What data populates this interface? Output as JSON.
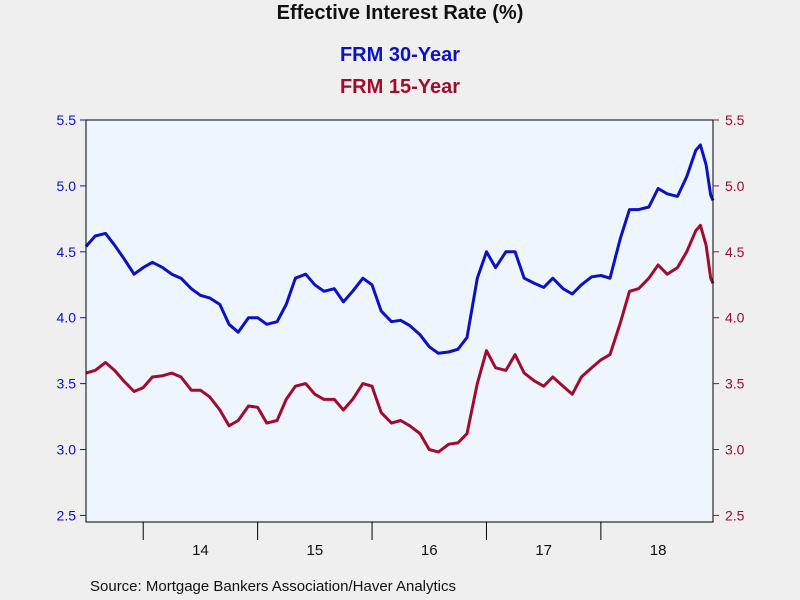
{
  "colors": {
    "series1": "#0b12c4",
    "series2": "#a10b2e",
    "plot_bg": "#eef5fd",
    "frame": "#000000"
  },
  "chart_data": {
    "type": "line",
    "title": "Effective Interest Rate (%)",
    "source": "Source:  Mortgage Bankers Association/Haver Analytics",
    "x_range": [
      2013.5,
      2018.98
    ],
    "x_ticks": [
      {
        "label": "14",
        "value": 2014.5
      },
      {
        "label": "15",
        "value": 2015.5
      },
      {
        "label": "16",
        "value": 2016.5
      },
      {
        "label": "17",
        "value": 2017.5
      },
      {
        "label": "18",
        "value": 2018.5
      }
    ],
    "y_left": {
      "range": [
        2.45,
        5.5
      ],
      "ticks": [
        "2.5",
        "3.0",
        "3.5",
        "4.0",
        "4.5",
        "5.0",
        "5.5"
      ]
    },
    "y_right": {
      "range": [
        2.45,
        5.5
      ],
      "ticks": [
        "2.5",
        "3.0",
        "3.5",
        "4.0",
        "4.5",
        "5.0",
        "5.5"
      ]
    },
    "grid": false,
    "legend": "top-center",
    "series": [
      {
        "name": "FRM 30-Year",
        "axis": "left",
        "points": [
          [
            2013.5,
            4.54
          ],
          [
            2013.58,
            4.62
          ],
          [
            2013.67,
            4.64
          ],
          [
            2013.75,
            4.55
          ],
          [
            2013.83,
            4.45
          ],
          [
            2013.92,
            4.33
          ],
          [
            2014.0,
            4.38
          ],
          [
            2014.08,
            4.42
          ],
          [
            2014.17,
            4.38
          ],
          [
            2014.25,
            4.33
          ],
          [
            2014.33,
            4.3
          ],
          [
            2014.42,
            4.22
          ],
          [
            2014.5,
            4.17
          ],
          [
            2014.58,
            4.15
          ],
          [
            2014.67,
            4.1
          ],
          [
            2014.75,
            3.95
          ],
          [
            2014.83,
            3.89
          ],
          [
            2014.92,
            4.0
          ],
          [
            2015.0,
            4.0
          ],
          [
            2015.08,
            3.95
          ],
          [
            2015.17,
            3.97
          ],
          [
            2015.25,
            4.1
          ],
          [
            2015.33,
            4.3
          ],
          [
            2015.42,
            4.33
          ],
          [
            2015.5,
            4.25
          ],
          [
            2015.58,
            4.2
          ],
          [
            2015.67,
            4.22
          ],
          [
            2015.75,
            4.12
          ],
          [
            2015.83,
            4.2
          ],
          [
            2015.92,
            4.3
          ],
          [
            2016.0,
            4.25
          ],
          [
            2016.08,
            4.05
          ],
          [
            2016.17,
            3.97
          ],
          [
            2016.25,
            3.98
          ],
          [
            2016.33,
            3.94
          ],
          [
            2016.42,
            3.87
          ],
          [
            2016.5,
            3.78
          ],
          [
            2016.58,
            3.73
          ],
          [
            2016.67,
            3.74
          ],
          [
            2016.75,
            3.76
          ],
          [
            2016.83,
            3.85
          ],
          [
            2016.92,
            4.3
          ],
          [
            2017.0,
            4.5
          ],
          [
            2017.08,
            4.38
          ],
          [
            2017.17,
            4.5
          ],
          [
            2017.25,
            4.5
          ],
          [
            2017.33,
            4.3
          ],
          [
            2017.42,
            4.26
          ],
          [
            2017.5,
            4.23
          ],
          [
            2017.58,
            4.3
          ],
          [
            2017.67,
            4.22
          ],
          [
            2017.75,
            4.18
          ],
          [
            2017.83,
            4.25
          ],
          [
            2017.92,
            4.31
          ],
          [
            2018.0,
            4.32
          ],
          [
            2018.08,
            4.3
          ],
          [
            2018.17,
            4.6
          ],
          [
            2018.25,
            4.82
          ],
          [
            2018.33,
            4.82
          ],
          [
            2018.42,
            4.84
          ],
          [
            2018.5,
            4.98
          ],
          [
            2018.58,
            4.94
          ],
          [
            2018.67,
            4.92
          ],
          [
            2018.75,
            5.07
          ],
          [
            2018.83,
            5.27
          ],
          [
            2018.87,
            5.31
          ],
          [
            2018.92,
            5.16
          ],
          [
            2018.96,
            4.93
          ],
          [
            2018.98,
            4.89
          ]
        ]
      },
      {
        "name": "FRM 15-Year",
        "axis": "right",
        "points": [
          [
            2013.5,
            3.58
          ],
          [
            2013.58,
            3.6
          ],
          [
            2013.67,
            3.66
          ],
          [
            2013.75,
            3.6
          ],
          [
            2013.83,
            3.52
          ],
          [
            2013.92,
            3.44
          ],
          [
            2014.0,
            3.47
          ],
          [
            2014.08,
            3.55
          ],
          [
            2014.17,
            3.56
          ],
          [
            2014.25,
            3.58
          ],
          [
            2014.33,
            3.55
          ],
          [
            2014.42,
            3.45
          ],
          [
            2014.5,
            3.45
          ],
          [
            2014.58,
            3.4
          ],
          [
            2014.67,
            3.3
          ],
          [
            2014.75,
            3.18
          ],
          [
            2014.83,
            3.22
          ],
          [
            2014.92,
            3.33
          ],
          [
            2015.0,
            3.32
          ],
          [
            2015.08,
            3.2
          ],
          [
            2015.17,
            3.22
          ],
          [
            2015.25,
            3.38
          ],
          [
            2015.33,
            3.48
          ],
          [
            2015.42,
            3.5
          ],
          [
            2015.5,
            3.42
          ],
          [
            2015.58,
            3.38
          ],
          [
            2015.67,
            3.38
          ],
          [
            2015.75,
            3.3
          ],
          [
            2015.83,
            3.38
          ],
          [
            2015.92,
            3.5
          ],
          [
            2016.0,
            3.48
          ],
          [
            2016.08,
            3.28
          ],
          [
            2016.17,
            3.2
          ],
          [
            2016.25,
            3.22
          ],
          [
            2016.33,
            3.18
          ],
          [
            2016.42,
            3.12
          ],
          [
            2016.5,
            3.0
          ],
          [
            2016.58,
            2.98
          ],
          [
            2016.67,
            3.04
          ],
          [
            2016.75,
            3.05
          ],
          [
            2016.83,
            3.12
          ],
          [
            2016.92,
            3.5
          ],
          [
            2017.0,
            3.75
          ],
          [
            2017.08,
            3.62
          ],
          [
            2017.17,
            3.6
          ],
          [
            2017.25,
            3.72
          ],
          [
            2017.33,
            3.58
          ],
          [
            2017.42,
            3.52
          ],
          [
            2017.5,
            3.48
          ],
          [
            2017.58,
            3.55
          ],
          [
            2017.67,
            3.48
          ],
          [
            2017.75,
            3.42
          ],
          [
            2017.83,
            3.55
          ],
          [
            2017.92,
            3.62
          ],
          [
            2018.0,
            3.68
          ],
          [
            2018.08,
            3.72
          ],
          [
            2018.17,
            3.96
          ],
          [
            2018.25,
            4.2
          ],
          [
            2018.33,
            4.22
          ],
          [
            2018.42,
            4.3
          ],
          [
            2018.5,
            4.4
          ],
          [
            2018.58,
            4.33
          ],
          [
            2018.67,
            4.38
          ],
          [
            2018.75,
            4.5
          ],
          [
            2018.83,
            4.66
          ],
          [
            2018.87,
            4.7
          ],
          [
            2018.92,
            4.55
          ],
          [
            2018.96,
            4.3
          ],
          [
            2018.98,
            4.26
          ]
        ]
      }
    ]
  }
}
